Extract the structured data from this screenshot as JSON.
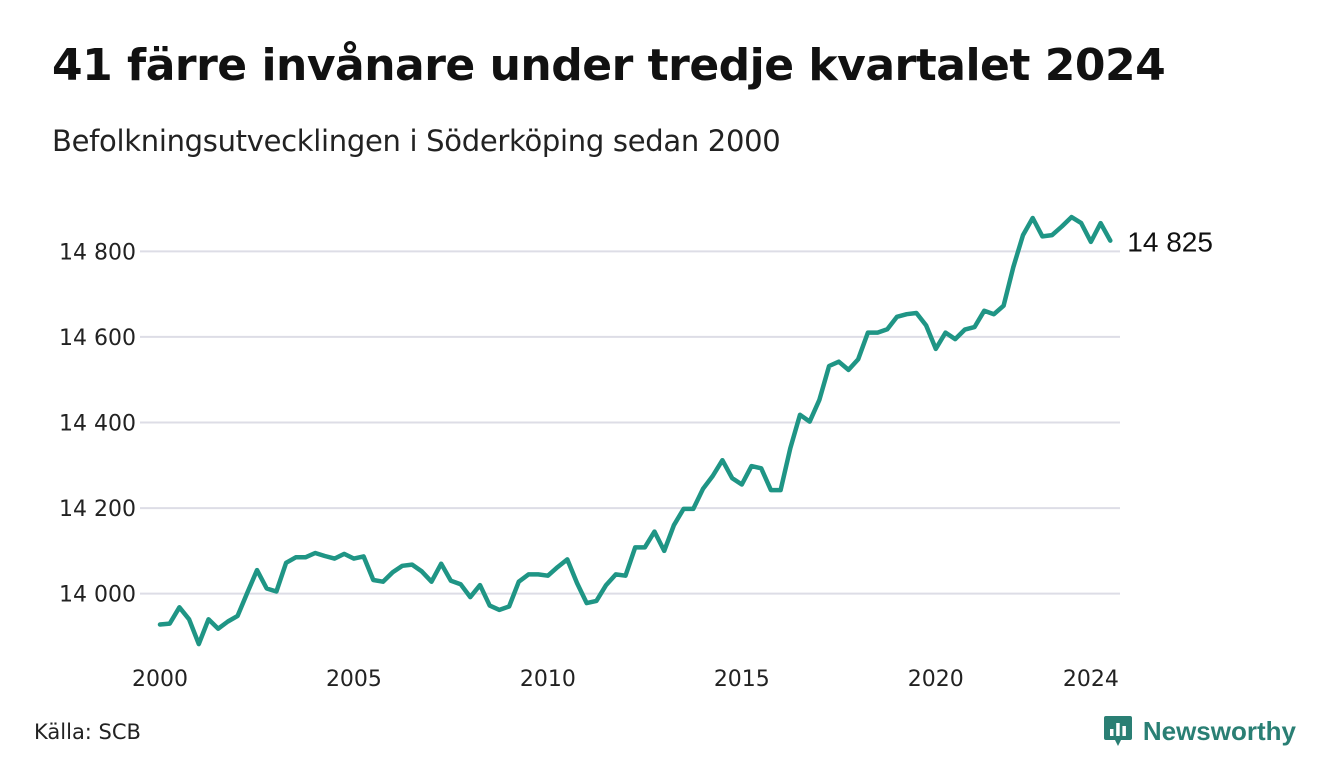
{
  "header": {
    "title": "41 färre invånare under tredje kvartalet 2024",
    "subtitle": "Befolkningsutvecklingen i Söderköping sedan 2000"
  },
  "footer": {
    "source": "Källa: SCB",
    "brand": "Newsworthy",
    "brand_icon": "chart-bubble-icon"
  },
  "colors": {
    "line": "#1f9585",
    "grid": "#dddde6",
    "brand": "#2a7f74"
  },
  "chart_data": {
    "type": "line",
    "title": "41 färre invånare under tredje kvartalet 2024",
    "subtitle": "Befolkningsutvecklingen i Söderköping sedan 2000",
    "xlabel": "",
    "ylabel": "",
    "xlim": [
      2000,
      2024.75
    ],
    "ylim": [
      13880,
      14920
    ],
    "x_ticks": [
      2000,
      2005,
      2010,
      2015,
      2020,
      2024
    ],
    "x_tick_labels": [
      "2000",
      "2005",
      "2010",
      "2015",
      "2020",
      "2024"
    ],
    "y_ticks": [
      14000,
      14200,
      14400,
      14600,
      14800
    ],
    "y_tick_labels": [
      "14 000",
      "14 200",
      "14 400",
      "14 600",
      "14 800"
    ],
    "grid": "horizontal",
    "legend": "none",
    "end_label": "14 825",
    "series": [
      {
        "start": "2000 Q1",
        "frequency": "quarterly",
        "values": [
          13928,
          13930,
          13968,
          13940,
          13882,
          13940,
          13918,
          13935,
          13948,
          14002,
          14055,
          14012,
          14005,
          14072,
          14085,
          14085,
          14095,
          14088,
          14082,
          14093,
          14082,
          14087,
          14032,
          14028,
          14050,
          14065,
          14068,
          14052,
          14028,
          14070,
          14030,
          14022,
          13992,
          14020,
          13972,
          13962,
          13970,
          14028,
          14045,
          14045,
          14042,
          14062,
          14080,
          14025,
          13978,
          13983,
          14020,
          14045,
          14042,
          14108,
          14108,
          14145,
          14100,
          14160,
          14198,
          14198,
          14245,
          14275,
          14312,
          14270,
          14255,
          14298,
          14293,
          14242,
          14242,
          14340,
          14418,
          14402,
          14453,
          14532,
          14542,
          14523,
          14548,
          14610,
          14610,
          14618,
          14647,
          14653,
          14656,
          14627,
          14572,
          14610,
          14595,
          14617,
          14623,
          14661,
          14653,
          14673,
          14763,
          14838,
          14878,
          14835,
          14838,
          14858,
          14880,
          14866,
          14822,
          14866,
          14825
        ]
      }
    ]
  }
}
